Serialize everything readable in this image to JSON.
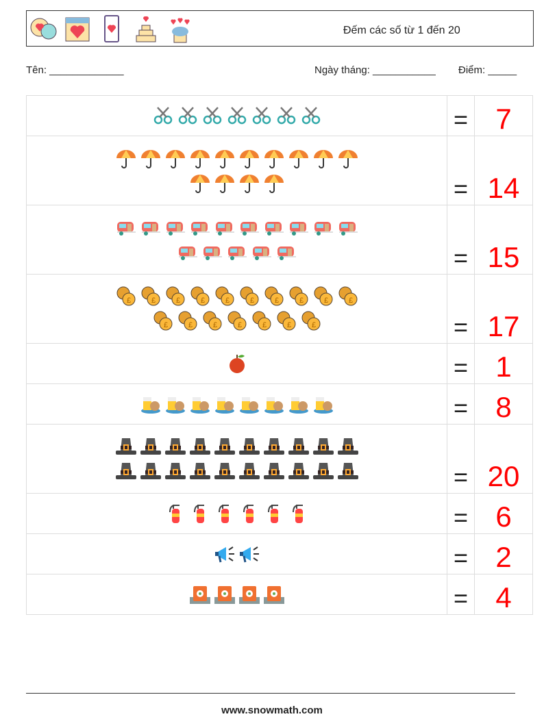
{
  "header": {
    "title": "Đếm các số từ 1 đến 20",
    "icons": [
      "love-chat-icon",
      "calendar-heart-icon",
      "phone-heart-icon",
      "cake-icon",
      "cupcake-icon"
    ]
  },
  "info": {
    "name_label": "Tên: _____________",
    "date_label": "Ngày tháng: ___________",
    "score_label": "Điểm: _____"
  },
  "equals": "=",
  "rows": [
    {
      "icon": "scissors",
      "count": 7,
      "answer": "7"
    },
    {
      "icon": "umbrella",
      "count": 14,
      "answer": "14"
    },
    {
      "icon": "caravan",
      "count": 15,
      "answer": "15"
    },
    {
      "icon": "coins",
      "count": 17,
      "answer": "17"
    },
    {
      "icon": "apple",
      "count": 1,
      "answer": "1"
    },
    {
      "icon": "drink-cookie",
      "count": 8,
      "answer": "8"
    },
    {
      "icon": "pilgrim-hat",
      "count": 20,
      "answer": "20"
    },
    {
      "icon": "fire-extinguisher",
      "count": 6,
      "answer": "6"
    },
    {
      "icon": "megaphone",
      "count": 2,
      "answer": "2"
    },
    {
      "icon": "barrel",
      "count": 4,
      "answer": "4"
    }
  ],
  "footer": "www.snowmath.com"
}
